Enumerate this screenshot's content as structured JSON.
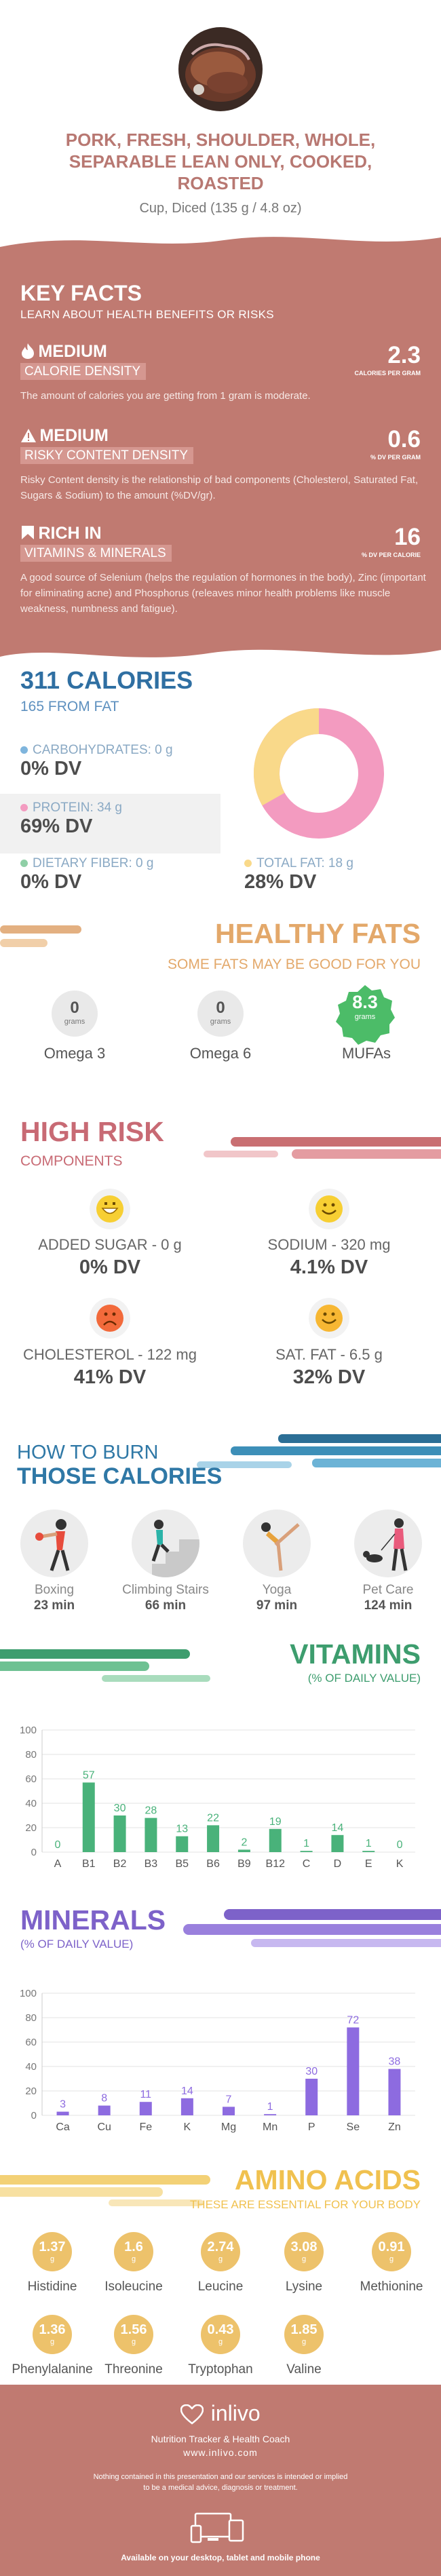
{
  "header": {
    "title_lines": [
      "PORK, FRESH, SHOULDER, WHOLE,",
      "SEPARABLE LEAN ONLY, COOKED,",
      "ROASTED"
    ],
    "serving": "Cup, Diced (135 g / 4.8 oz)"
  },
  "key_facts": {
    "title": "KEY FACTS",
    "subtitle": "LEARN ABOUT HEALTH BENEFITS OR RISKS",
    "items": [
      {
        "level": "MEDIUM",
        "label": "CALORIE DENSITY",
        "value": "2.3",
        "unit": "CALORIES PER GRAM",
        "desc": "The amount of calories you are getting from 1 gram is moderate."
      },
      {
        "level": "MEDIUM",
        "label": "RISKY CONTENT DENSITY",
        "value": "0.6",
        "unit": "% DV PER GRAM",
        "desc": "Risky Content density is the relationship of bad components (Cholesterol, Saturated Fat, Sugars & Sodium) to the amount (%DV/gr)."
      },
      {
        "level": "RICH  IN",
        "label": "VITAMINS & MINERALS",
        "value": "16",
        "unit": "% DV PER CALORIE",
        "desc": "A good source of Selenium (helps the regulation of hormones in the body), Zinc (important for eliminating acne) and Phosphorus (releaves minor health problems like muscle weakness, numbness and fatigue)."
      }
    ]
  },
  "calories": {
    "title": "311 CALORIES",
    "from_fat": "165 FROM FAT",
    "carbs_label": "CARBOHYDRATES: 0 g",
    "carbs_dv": "0% DV",
    "protein_label": "PROTEIN: 34 g",
    "protein_dv": "69% DV",
    "fiber_label": "DIETARY FIBER: 0 g",
    "fiber_dv": "0% DV",
    "fat_label": "TOTAL FAT: 18 g",
    "fat_dv": "28% DV",
    "colors": {
      "carbs": "#7fb5dd",
      "protein": "#f39bc0",
      "fiber": "#8fcfa6",
      "fat": "#f9d98a"
    }
  },
  "healthy_fats": {
    "title": "HEALTHY FATS",
    "subtitle": "SOME FATS MAY BE GOOD FOR YOU",
    "items": [
      {
        "value": "0",
        "unit": "grams",
        "name": "Omega 3"
      },
      {
        "value": "0",
        "unit": "grams",
        "name": "Omega 6"
      },
      {
        "value": "8.3",
        "unit": "grams",
        "name": "MUFAs"
      }
    ]
  },
  "high_risk": {
    "title": "HIGH RISK",
    "subtitle": "COMPONENTS",
    "items": [
      {
        "label": "ADDED SUGAR - 0 g",
        "dv": "0% DV",
        "face": "happy-face-icon"
      },
      {
        "label": "SODIUM - 320 mg",
        "dv": "4.1% DV",
        "face": "smile-face-icon"
      },
      {
        "label": "CHOLESTEROL - 122 mg",
        "dv": "41% DV",
        "face": "sad-face-icon"
      },
      {
        "label": "SAT. FAT - 6.5 g",
        "dv": "32% DV",
        "face": "smile-face-icon"
      }
    ]
  },
  "burn": {
    "title_1": "HOW TO BURN",
    "title_2": "THOSE CALORIES",
    "items": [
      {
        "name": "Boxing",
        "minutes": "23 min",
        "icon": "boxing-icon"
      },
      {
        "name": "Climbing Stairs",
        "minutes": "66 min",
        "icon": "stairs-icon"
      },
      {
        "name": "Yoga",
        "minutes": "97 min",
        "icon": "yoga-icon"
      },
      {
        "name": "Pet Care",
        "minutes": "124 min",
        "icon": "dog-walk-icon"
      }
    ]
  },
  "vitamins": {
    "title": "VITAMINS",
    "subtitle": "(% OF DAILY VALUE)"
  },
  "minerals": {
    "title": "MINERALS",
    "subtitle": "(% OF DAILY VALUE)"
  },
  "chart_data": [
    {
      "type": "bar",
      "title": "VITAMINS",
      "categories": [
        "A",
        "B1",
        "B2",
        "B3",
        "B5",
        "B6",
        "B9",
        "B12",
        "C",
        "D",
        "E",
        "K"
      ],
      "values": [
        0,
        57,
        30,
        28,
        13,
        22,
        2,
        19,
        1,
        14,
        1,
        0
      ],
      "ylim": [
        0,
        100
      ],
      "yticks": [
        0,
        20,
        40,
        60,
        80,
        100
      ],
      "color": "#49b27a"
    },
    {
      "type": "bar",
      "title": "MINERALS",
      "categories": [
        "Ca",
        "Cu",
        "Fe",
        "K",
        "Mg",
        "Mn",
        "P",
        "Se",
        "Zn"
      ],
      "values": [
        3,
        8,
        11,
        14,
        7,
        1,
        30,
        72,
        38
      ],
      "ylim": [
        0,
        100
      ],
      "yticks": [
        0,
        20,
        40,
        60,
        80,
        100
      ],
      "color": "#8d6be0"
    }
  ],
  "amino": {
    "title": "AMINO ACIDS",
    "subtitle": "THESE ARE ESSENTIAL FOR YOUR BODY",
    "items": [
      {
        "value": "1.37",
        "unit": "g",
        "name": "Histidine"
      },
      {
        "value": "1.6",
        "unit": "g",
        "name": "Isoleucine"
      },
      {
        "value": "2.74",
        "unit": "g",
        "name": "Leucine"
      },
      {
        "value": "3.08",
        "unit": "g",
        "name": "Lysine"
      },
      {
        "value": "0.91",
        "unit": "g",
        "name": "Methionine"
      },
      {
        "value": "1.36",
        "unit": "g",
        "name": "Phenylalanine"
      },
      {
        "value": "1.56",
        "unit": "g",
        "name": "Threonine"
      },
      {
        "value": "0.43",
        "unit": "g",
        "name": "Tryptophan"
      },
      {
        "value": "1.85",
        "unit": "g",
        "name": "Valine"
      }
    ]
  },
  "footer": {
    "brand": "inlivo",
    "tagline": "Nutrition Tracker & Health Coach",
    "site": "www.inlivo.com",
    "disclaimer_1": "Nothing contained in this presentation and our services is intended or implied",
    "disclaimer_2": "to be a medical advice, diagnosis or treatment.",
    "devices": "Available on your desktop, tablet and mobile phone"
  }
}
